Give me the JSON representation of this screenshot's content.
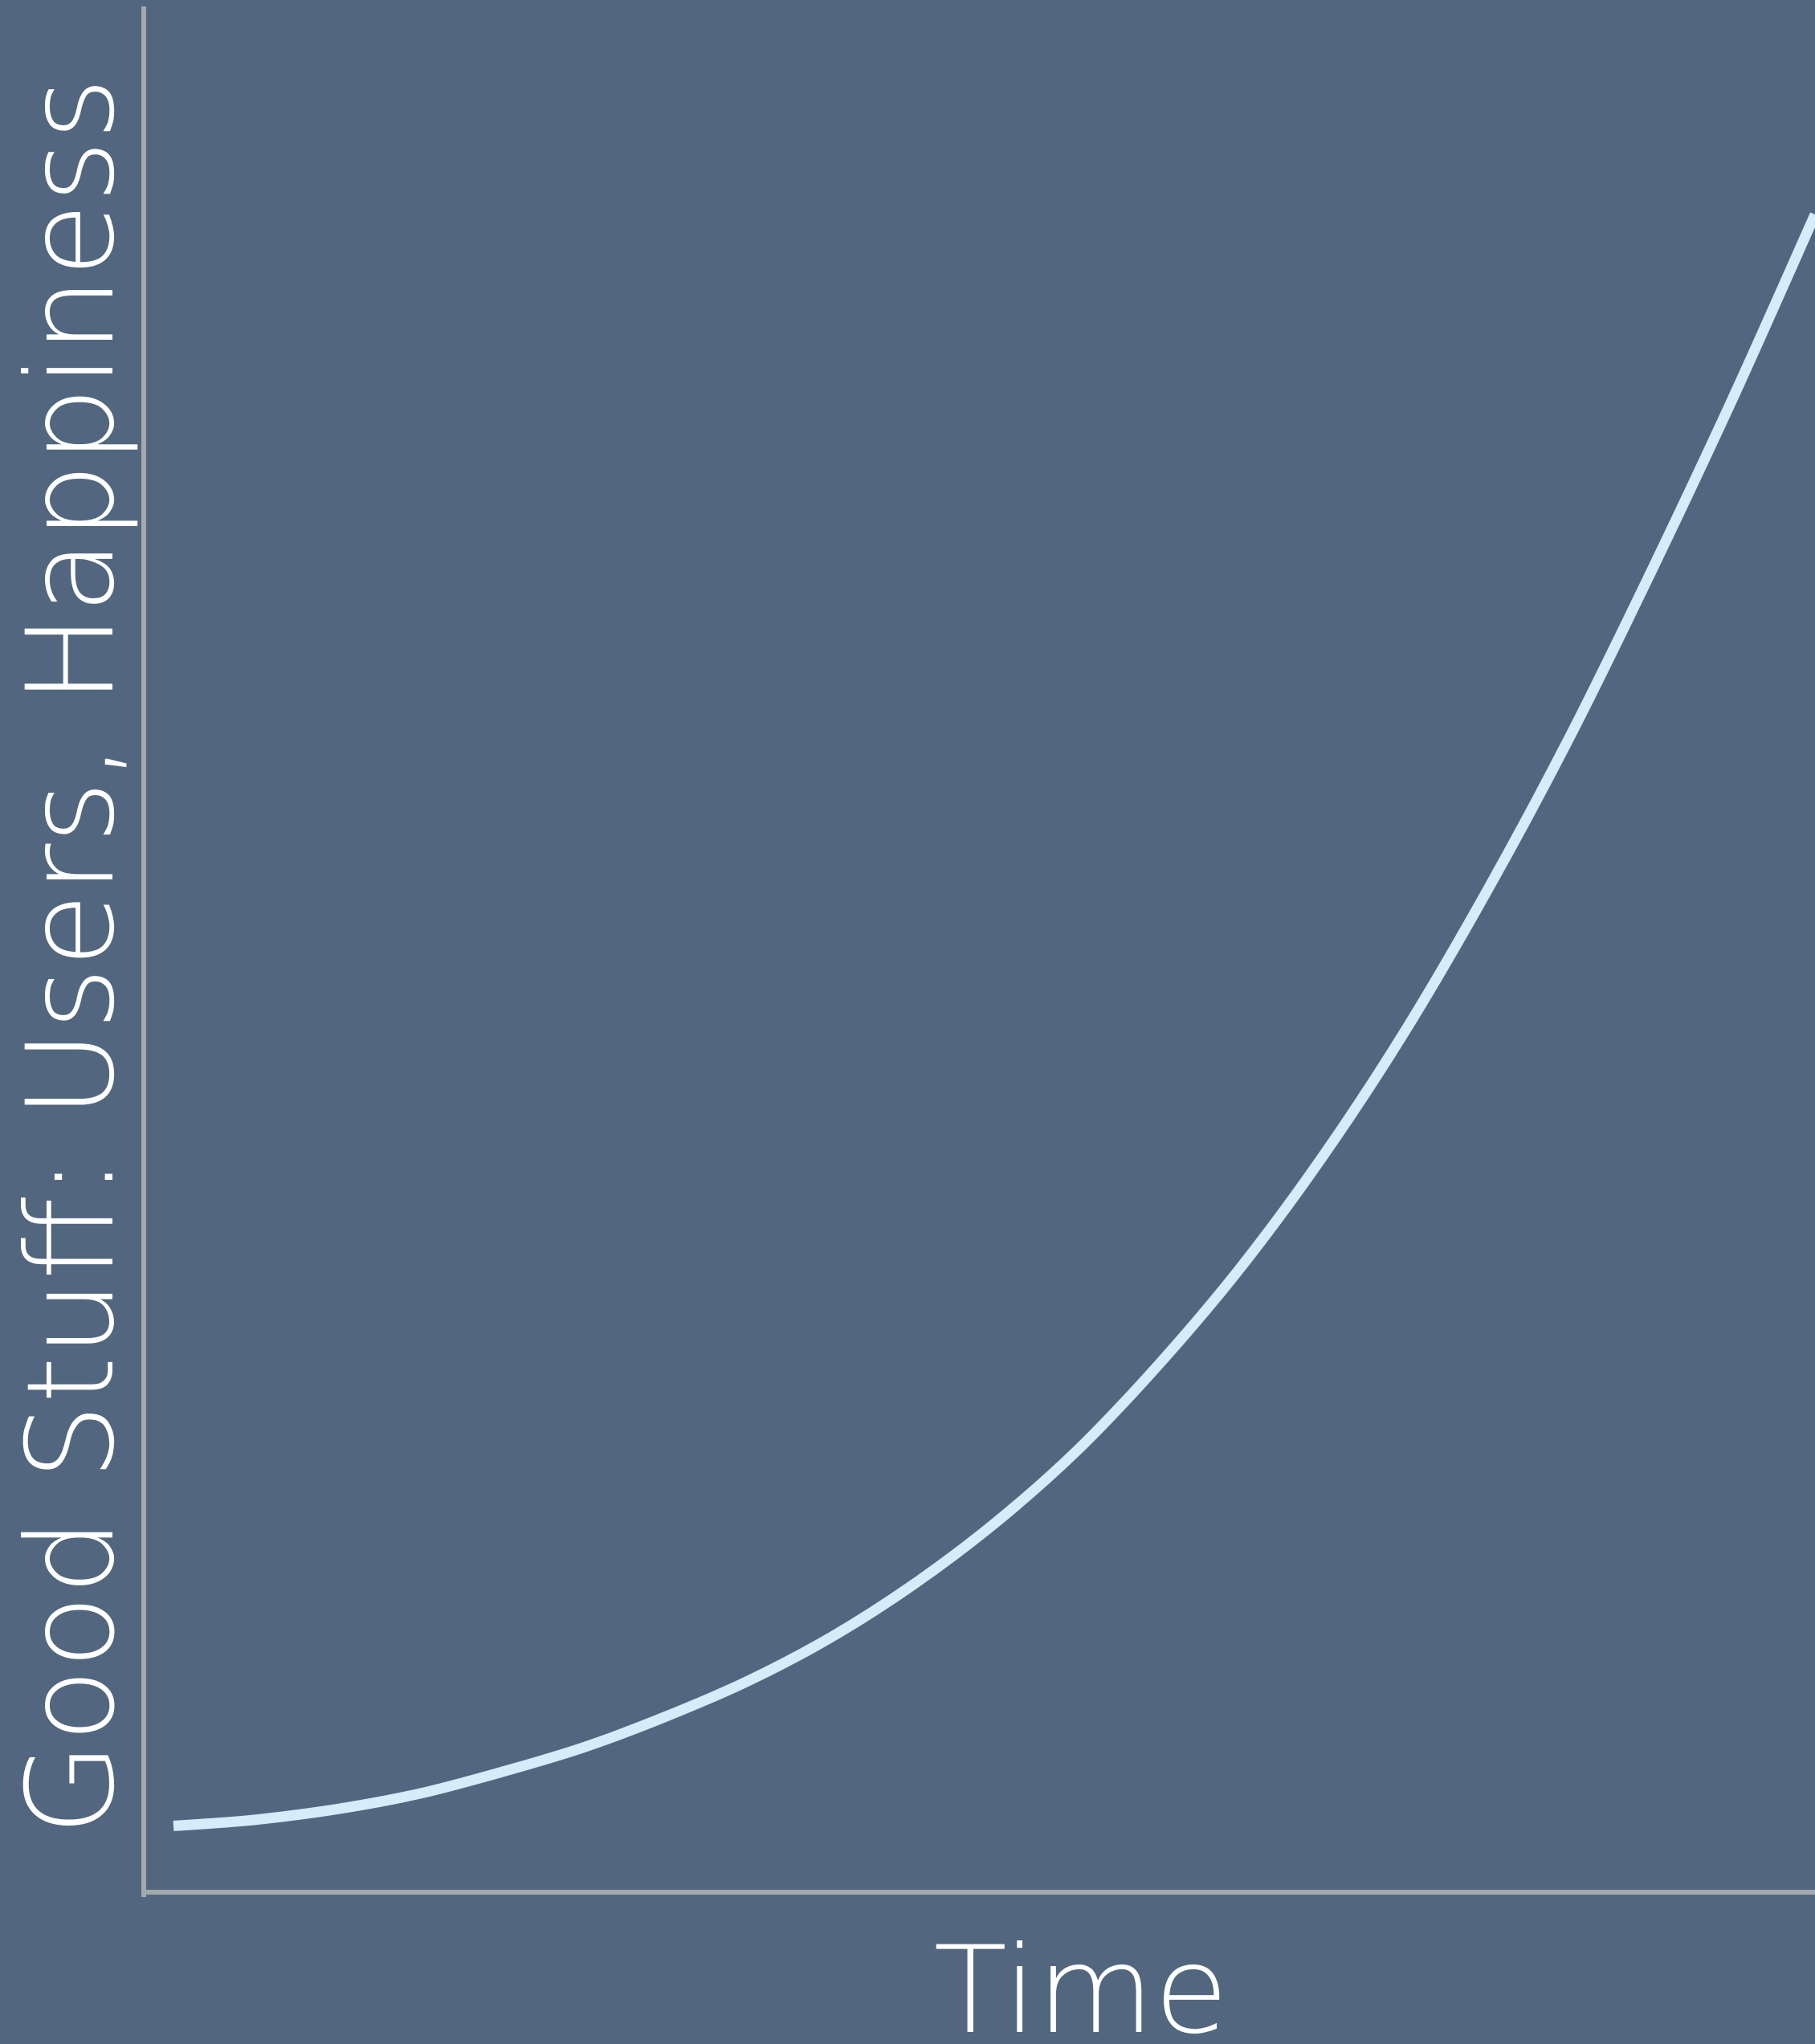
{
  "colors": {
    "background": "#52677f",
    "axis": "#a4a9ae",
    "curve": "#d6ecfa",
    "text": "#ffffff"
  },
  "chart_data": {
    "type": "line",
    "title": "",
    "xlabel": "Time",
    "ylabel": "Good Stuff: Users, Happiness",
    "grid": false,
    "legend": "none",
    "xlim": [
      0,
      1
    ],
    "ylim": [
      0,
      1
    ],
    "series": [
      {
        "x": [
          0.0,
          0.05,
          0.1,
          0.15,
          0.2,
          0.25,
          0.3,
          0.35,
          0.4,
          0.45,
          0.5,
          0.55,
          0.6,
          0.65,
          0.7,
          0.75,
          0.8,
          0.85,
          0.9,
          0.95,
          1.0
        ],
        "values": [
          0.019,
          0.023,
          0.03,
          0.04,
          0.054,
          0.07,
          0.09,
          0.113,
          0.141,
          0.175,
          0.215,
          0.262,
          0.318,
          0.381,
          0.453,
          0.534,
          0.625,
          0.724,
          0.832,
          0.945,
          1.064
        ]
      }
    ]
  }
}
